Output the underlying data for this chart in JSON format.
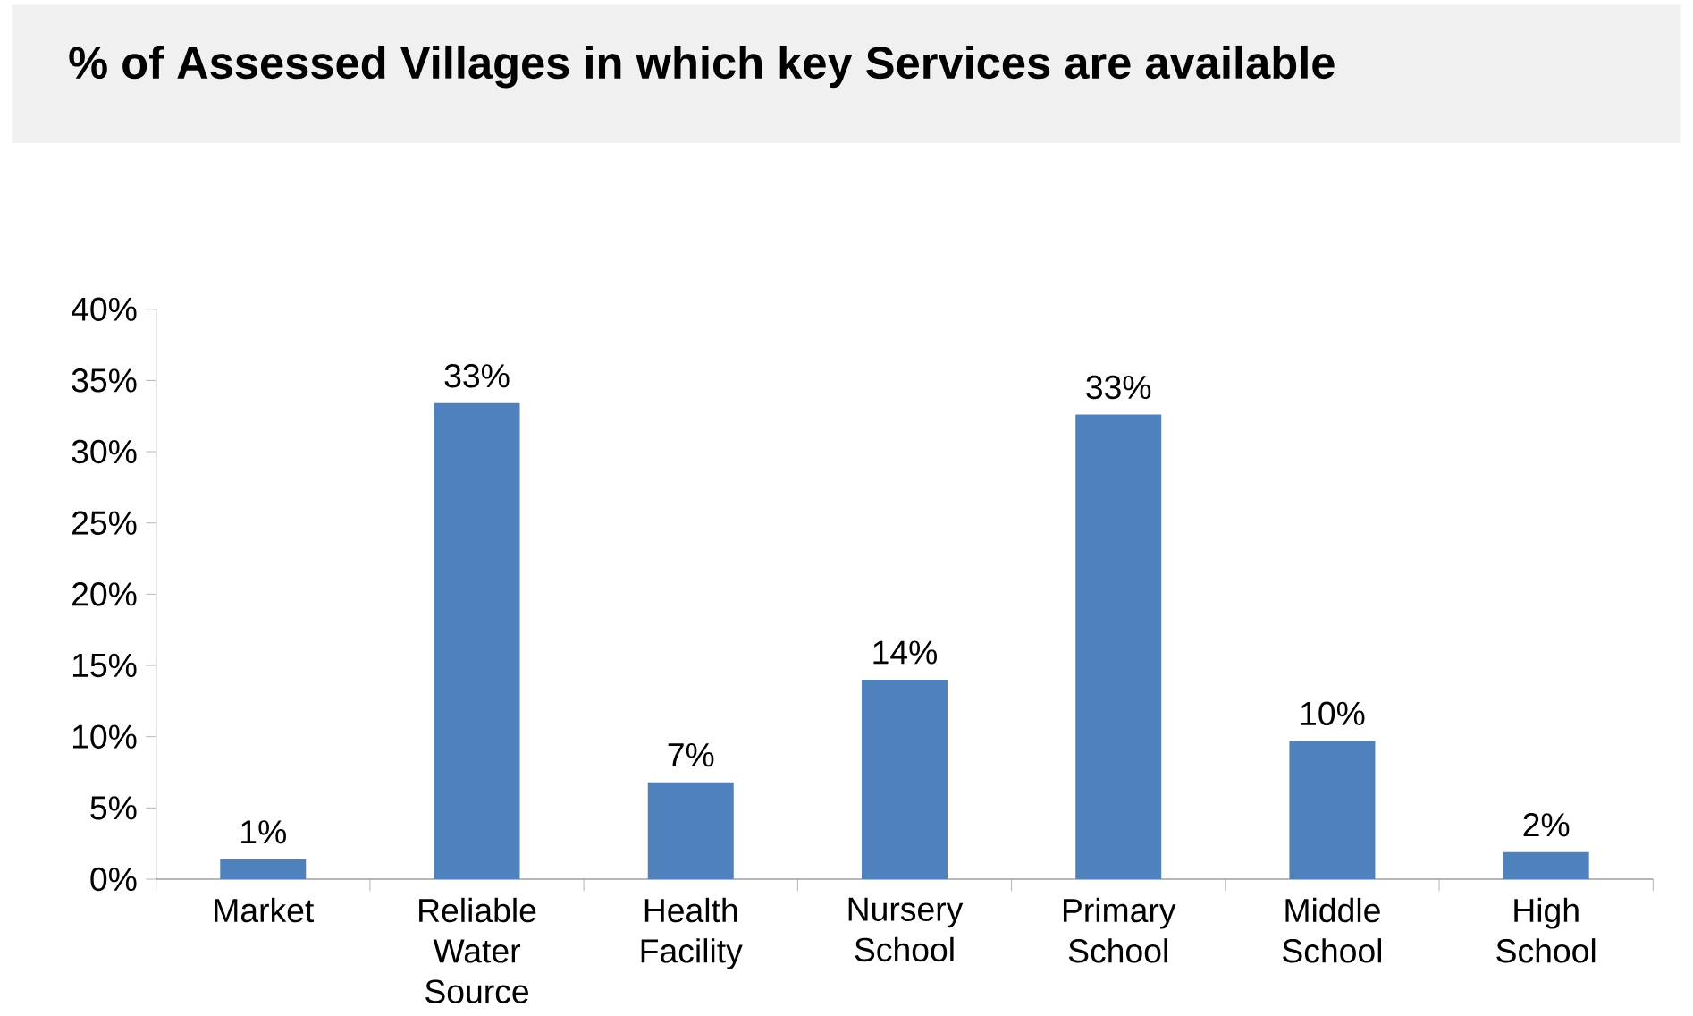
{
  "chart_data": {
    "type": "bar",
    "title": "% of Assessed Villages in which key Services  are available",
    "categories": [
      "Market",
      "Reliable Water Source",
      "Health Facility",
      "Nursery School",
      "Primary School",
      "Middle School",
      "High School"
    ],
    "values": [
      1.4,
      33.4,
      6.8,
      14,
      32.6,
      9.7,
      1.9
    ],
    "value_labels": [
      "1%",
      "33%",
      "7%",
      "14%",
      "33%",
      "10%",
      "2%"
    ],
    "color": "#4f81bd",
    "ylim": [
      0,
      40
    ],
    "yticks": [
      {
        "value": 0,
        "label": "0%"
      },
      {
        "value": 5,
        "label": "5%"
      },
      {
        "value": 10,
        "label": "10%"
      },
      {
        "value": 15,
        "label": "15%"
      },
      {
        "value": 20,
        "label": "20%"
      },
      {
        "value": 25,
        "label": "25%"
      },
      {
        "value": 30,
        "label": "30%"
      },
      {
        "value": 35,
        "label": "35%"
      },
      {
        "value": 40,
        "label": "40%"
      }
    ]
  }
}
